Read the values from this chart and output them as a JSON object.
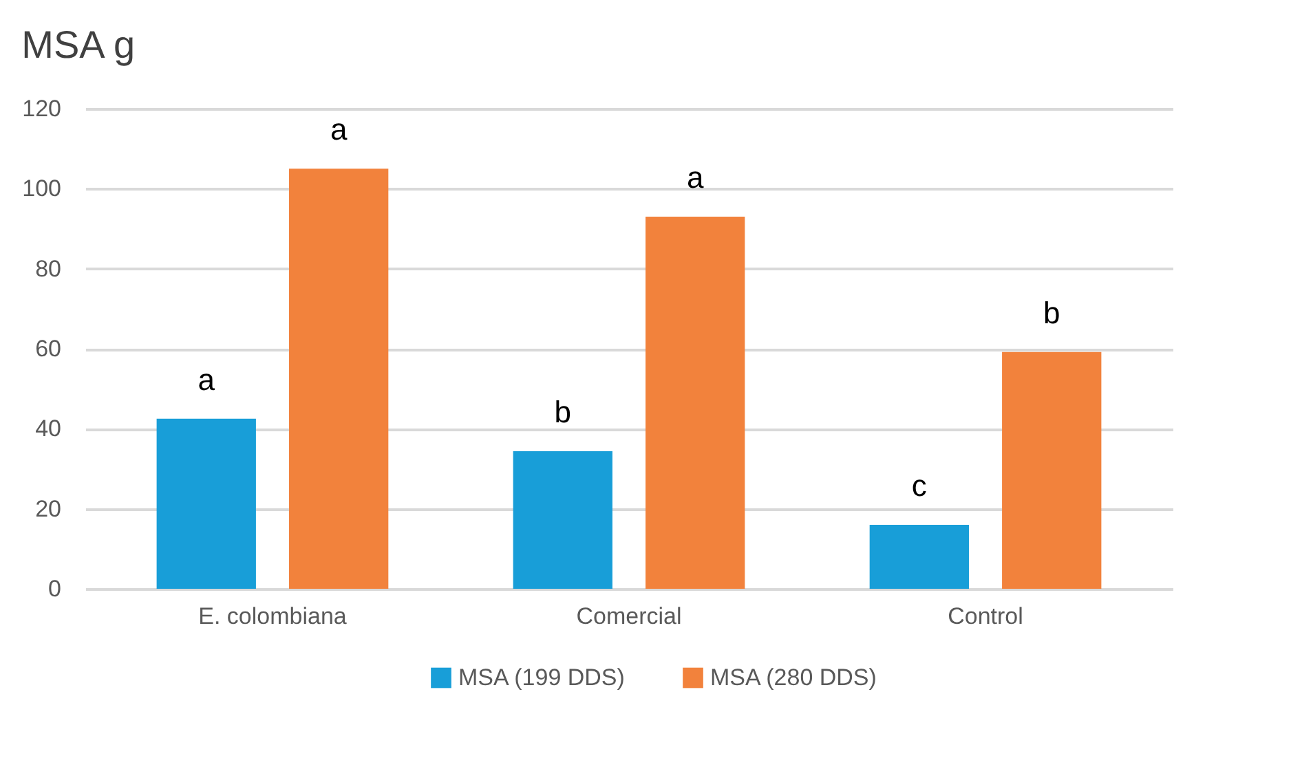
{
  "chart_data": {
    "type": "bar",
    "title": "MSA g",
    "categories": [
      "E. colombiana",
      "Comercial",
      "Control"
    ],
    "series": [
      {
        "name": "MSA (199 DDS)",
        "color": "#189ed8",
        "values": [
          42.5,
          34.4,
          16
        ]
      },
      {
        "name": "MSA (280 DDS)",
        "color": "#f2823c",
        "values": [
          105,
          93,
          59.2
        ]
      }
    ],
    "ylim": [
      0,
      120
    ],
    "yticks": [
      0,
      20,
      40,
      60,
      80,
      100,
      120
    ],
    "grid": "y",
    "legend": "bottom",
    "annotations": [
      "a",
      "a",
      "b",
      "a",
      "c",
      "b"
    ]
  }
}
